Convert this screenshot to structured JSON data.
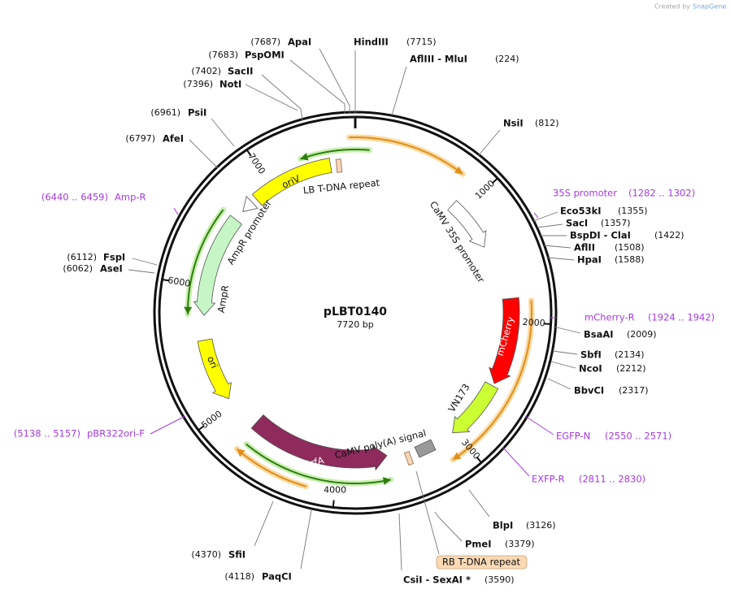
{
  "header": {
    "credit": "Created by",
    "brand": "SnapGene"
  },
  "map": {
    "name": "pLBT0140",
    "size": "7720 bp"
  },
  "ticks": [
    "1000",
    "2000",
    "3000",
    "4000",
    "5000",
    "6000",
    "7000"
  ],
  "sites": [
    {
      "name": "ApaI",
      "position": "(7687)"
    },
    {
      "name": "PspOMI",
      "position": "(7683)"
    },
    {
      "name": "SacII",
      "position": "(7402)"
    },
    {
      "name": "NotI",
      "position": "(7396)"
    },
    {
      "name": "PsiI",
      "position": "(6961)"
    },
    {
      "name": "AfeI",
      "position": "(6797)"
    },
    {
      "name": "FspI",
      "position": "(6112)"
    },
    {
      "name": "AseI",
      "position": "(6062)"
    },
    {
      "name": "SfiI",
      "position": "(4370)"
    },
    {
      "name": "PaqCI",
      "position": "(4118)"
    },
    {
      "name": "HindIII",
      "position": "(7715)"
    },
    {
      "name": "AflIII - MluI",
      "position": "(224)"
    },
    {
      "name": "NsiI",
      "position": "(812)"
    },
    {
      "name": "Eco53kI",
      "position": "(1355)"
    },
    {
      "name": "SacI",
      "position": "(1357)"
    },
    {
      "name": "BspDI - ClaI",
      "position": "(1422)"
    },
    {
      "name": "AflII",
      "position": "(1508)"
    },
    {
      "name": "HpaI",
      "position": "(1588)"
    },
    {
      "name": "BsaAI",
      "position": "(2009)"
    },
    {
      "name": "SbfI",
      "position": "(2134)"
    },
    {
      "name": "NcoI",
      "position": "(2212)"
    },
    {
      "name": "BbvCI",
      "position": "(2317)"
    },
    {
      "name": "BlpI",
      "position": "(3126)"
    },
    {
      "name": "PmeI",
      "position": "(3379)"
    },
    {
      "name": "CsiI - SexAI *",
      "position": "(3590)"
    }
  ],
  "primers": [
    {
      "name": "Amp-R",
      "range": "(6440 .. 6459)"
    },
    {
      "name": "pBR322ori-F",
      "range": "(5138 .. 5157)"
    },
    {
      "name": "35S promoter",
      "range": "(1282 .. 1302)"
    },
    {
      "name": "mCherry-R",
      "range": "(1924 .. 1942)"
    },
    {
      "name": "EGFP-N",
      "range": "(2550 .. 2571)"
    },
    {
      "name": "EXFP-R",
      "range": "(2811 .. 2830)"
    }
  ],
  "features": [
    "oriV",
    "LB T-DNA repeat",
    "AmpR promoter",
    "AmpR",
    "ori",
    "trfA",
    "CaMV poly(A) signal",
    "VN173",
    "mCherry",
    "CaMV 35S promoter",
    "RB T-DNA repeat"
  ]
}
